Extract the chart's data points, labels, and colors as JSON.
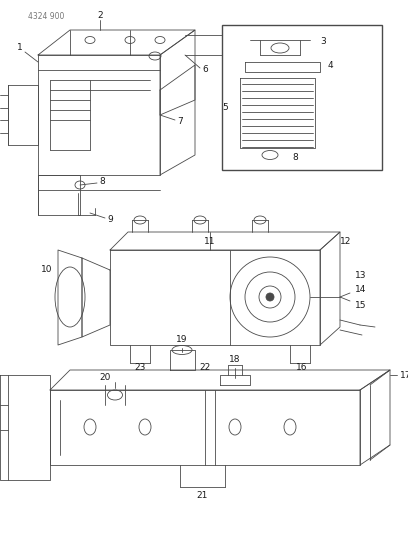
{
  "page_code": "4324 900",
  "bg": "#ffffff",
  "lc": "#4a4a4a",
  "tc": "#1a1a1a",
  "figsize": [
    4.08,
    5.33
  ],
  "dpi": 100,
  "lw": 0.6
}
